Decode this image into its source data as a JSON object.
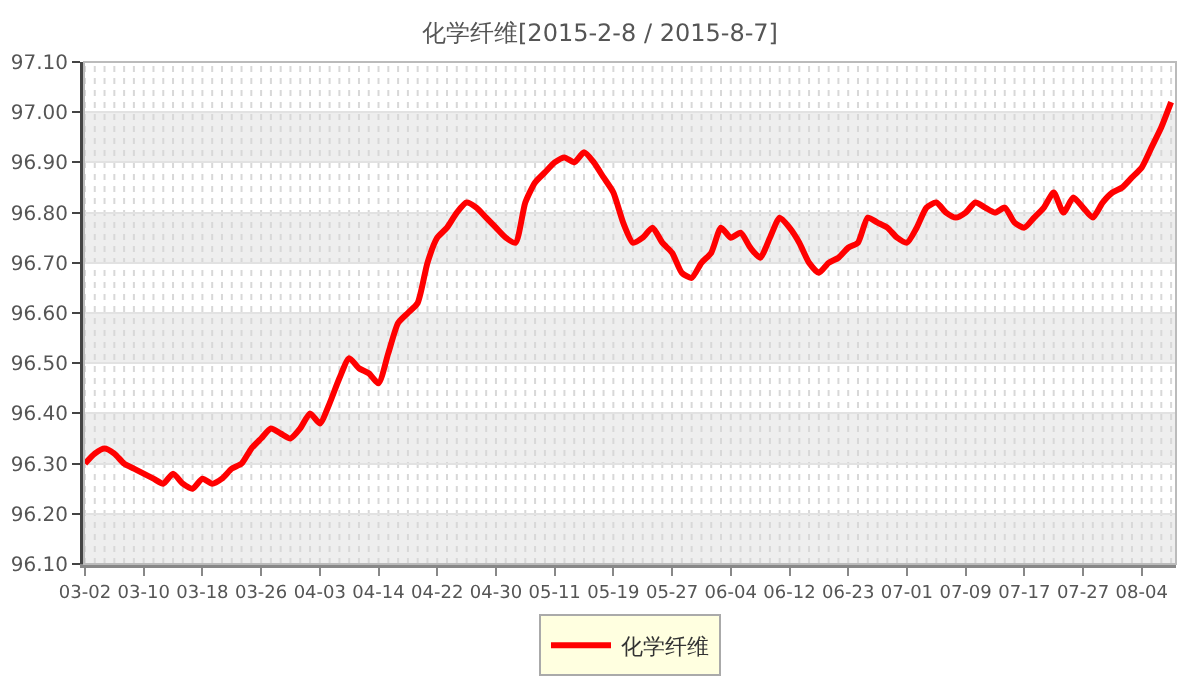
{
  "chart_data": {
    "type": "line",
    "title": "化学纤维[2015-2-8 / 2015-8-7]",
    "categories": [
      "03-02",
      null,
      null,
      null,
      null,
      null,
      "03-10",
      null,
      null,
      null,
      null,
      null,
      "03-18",
      null,
      null,
      null,
      null,
      null,
      "03-26",
      null,
      null,
      null,
      null,
      null,
      "04-03",
      null,
      null,
      null,
      null,
      null,
      "04-14",
      null,
      null,
      null,
      null,
      null,
      "04-22",
      null,
      null,
      null,
      null,
      null,
      "04-30",
      null,
      null,
      null,
      null,
      null,
      "05-11",
      null,
      null,
      null,
      null,
      null,
      "05-19",
      null,
      null,
      null,
      null,
      null,
      "05-27",
      null,
      null,
      null,
      null,
      null,
      "06-04",
      null,
      null,
      null,
      null,
      null,
      "06-12",
      null,
      null,
      null,
      null,
      null,
      "06-23",
      null,
      null,
      null,
      null,
      null,
      "07-01",
      null,
      null,
      null,
      null,
      null,
      "07-09",
      null,
      null,
      null,
      null,
      null,
      "07-17",
      null,
      null,
      null,
      null,
      null,
      "07-27",
      null,
      null,
      null,
      null,
      null,
      "08-04",
      null,
      null,
      null
    ],
    "series": [
      {
        "name": "化学纤维",
        "color": "#ff0000",
        "values": [
          96.3,
          96.32,
          96.33,
          96.32,
          96.3,
          96.29,
          96.28,
          96.27,
          96.26,
          96.28,
          96.26,
          96.25,
          96.27,
          96.26,
          96.27,
          96.29,
          96.3,
          96.33,
          96.35,
          96.37,
          96.36,
          96.35,
          96.37,
          96.4,
          96.38,
          96.42,
          96.47,
          96.51,
          96.49,
          96.48,
          96.46,
          96.52,
          96.58,
          96.6,
          96.62,
          96.7,
          96.75,
          96.77,
          96.8,
          96.82,
          96.81,
          96.79,
          96.77,
          96.75,
          96.74,
          96.82,
          96.86,
          96.88,
          96.9,
          96.91,
          96.9,
          96.92,
          96.9,
          96.87,
          96.84,
          96.78,
          96.74,
          96.75,
          96.77,
          96.74,
          96.72,
          96.68,
          96.67,
          96.7,
          96.72,
          96.77,
          96.75,
          96.76,
          96.73,
          96.71,
          96.75,
          96.79,
          96.77,
          96.74,
          96.7,
          96.68,
          96.7,
          96.71,
          96.73,
          96.74,
          96.79,
          96.78,
          96.77,
          96.75,
          96.74,
          96.77,
          96.81,
          96.82,
          96.8,
          96.79,
          96.8,
          96.82,
          96.81,
          96.8,
          96.81,
          96.78,
          96.77,
          96.79,
          96.81,
          96.84,
          96.8,
          96.83,
          96.81,
          96.79,
          96.82,
          96.84,
          96.85,
          96.87,
          96.89,
          96.93,
          96.97,
          97.02
        ]
      }
    ],
    "ylim": [
      96.1,
      97.1
    ],
    "yticks": [
      {
        "value": 96.1,
        "label": "96.10"
      },
      {
        "value": 96.2,
        "label": "96.20"
      },
      {
        "value": 96.3,
        "label": "96.30"
      },
      {
        "value": 96.4,
        "label": "96.40"
      },
      {
        "value": 96.5,
        "label": "96.50"
      },
      {
        "value": 96.6,
        "label": "96.60"
      },
      {
        "value": 96.7,
        "label": "96.70"
      },
      {
        "value": 96.8,
        "label": "96.80"
      },
      {
        "value": 96.9,
        "label": "96.90"
      },
      {
        "value": 97.0,
        "label": "97.00"
      },
      {
        "value": 97.1,
        "label": "97.10"
      }
    ],
    "grid": true,
    "legend": "bottom",
    "marker": "none",
    "line_style": "solid"
  }
}
